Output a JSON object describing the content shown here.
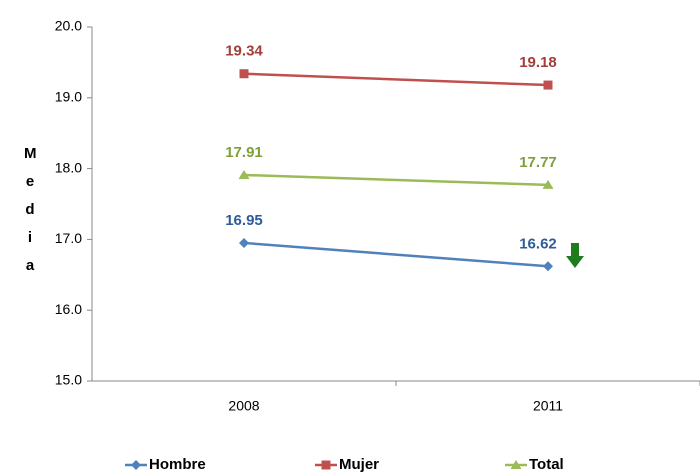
{
  "chart_data": {
    "type": "line",
    "y_label": "Media",
    "categories": [
      "2008",
      "2011"
    ],
    "series": [
      {
        "name": "Hombre",
        "color": "#4f81bd",
        "label_color": "#2e5c9a",
        "marker": "diamond",
        "values": [
          16.95,
          16.62
        ]
      },
      {
        "name": "Mujer",
        "color": "#c0504d",
        "label_color": "#a33e3a",
        "marker": "square",
        "values": [
          19.34,
          19.18
        ]
      },
      {
        "name": "Total",
        "color": "#9bbb59",
        "label_color": "#7f9f3a",
        "marker": "triangle",
        "values": [
          17.91,
          17.77
        ]
      }
    ],
    "ylim": [
      15.0,
      20.0
    ],
    "yticks": [
      {
        "value": 15,
        "label": "15.0"
      },
      {
        "value": 16,
        "label": "16.0"
      },
      {
        "value": 17,
        "label": "17.0"
      },
      {
        "value": 18,
        "label": "18.0"
      },
      {
        "value": 19,
        "label": "19.0"
      },
      {
        "value": 20,
        "label": "20.0"
      }
    ],
    "grid": false,
    "legend": "bottom"
  }
}
